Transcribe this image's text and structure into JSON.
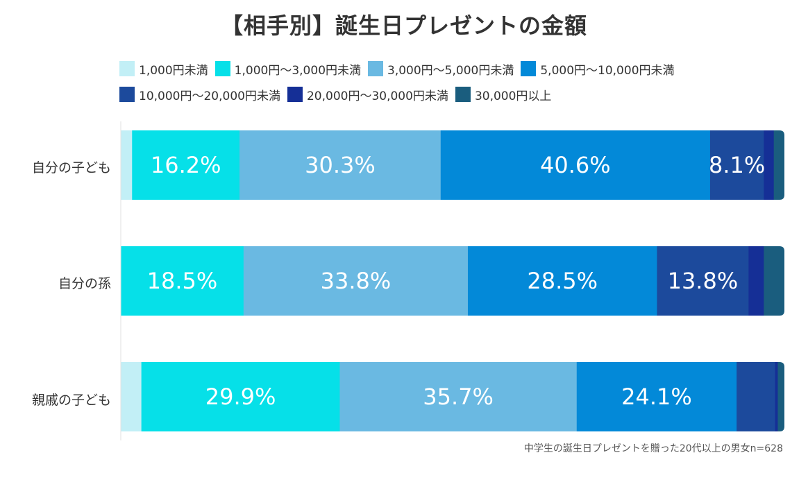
{
  "chart_data": {
    "type": "bar",
    "orientation": "horizontal",
    "stacked": "100%",
    "title": "【相手別】誕生日プレゼントの金額",
    "categories": [
      "自分の子ども",
      "自分の孫",
      "親戚の子ども"
    ],
    "legend_placement": "top",
    "grid": false,
    "series": [
      {
        "name": "1,000円未満",
        "color": "#c2eff6",
        "values": [
          1.7,
          0.0,
          3.1
        ]
      },
      {
        "name": "1,000円〜3,000円未満",
        "color": "#06e0e8",
        "values": [
          16.2,
          18.5,
          29.9
        ]
      },
      {
        "name": "3,000円〜5,000円未満",
        "color": "#6ab9e2",
        "values": [
          30.3,
          33.8,
          35.7
        ]
      },
      {
        "name": "5,000円〜10,000円未満",
        "color": "#0389d8",
        "values": [
          40.6,
          28.5,
          24.1
        ]
      },
      {
        "name": "10,000円〜20,000円未満",
        "color": "#1c4a9c",
        "values": [
          8.1,
          13.8,
          5.8
        ]
      },
      {
        "name": "20,000円〜30,000円未満",
        "color": "#152f96",
        "values": [
          1.5,
          2.3,
          0.4
        ]
      },
      {
        "name": "30,000円以上",
        "color": "#1a5d7e",
        "values": [
          1.6,
          3.1,
          1.0
        ]
      }
    ],
    "value_labels": [
      [
        "",
        "16.2%",
        "30.3%",
        "40.6%",
        "8.1%",
        "",
        ""
      ],
      [
        "",
        "18.5%",
        "33.8%",
        "28.5%",
        "13.8%",
        "",
        ""
      ],
      [
        "",
        "29.9%",
        "35.7%",
        "24.1%",
        "",
        "",
        ""
      ]
    ],
    "note": "中学生の誕生日プレゼントを贈った20代以上の男女n=628"
  }
}
